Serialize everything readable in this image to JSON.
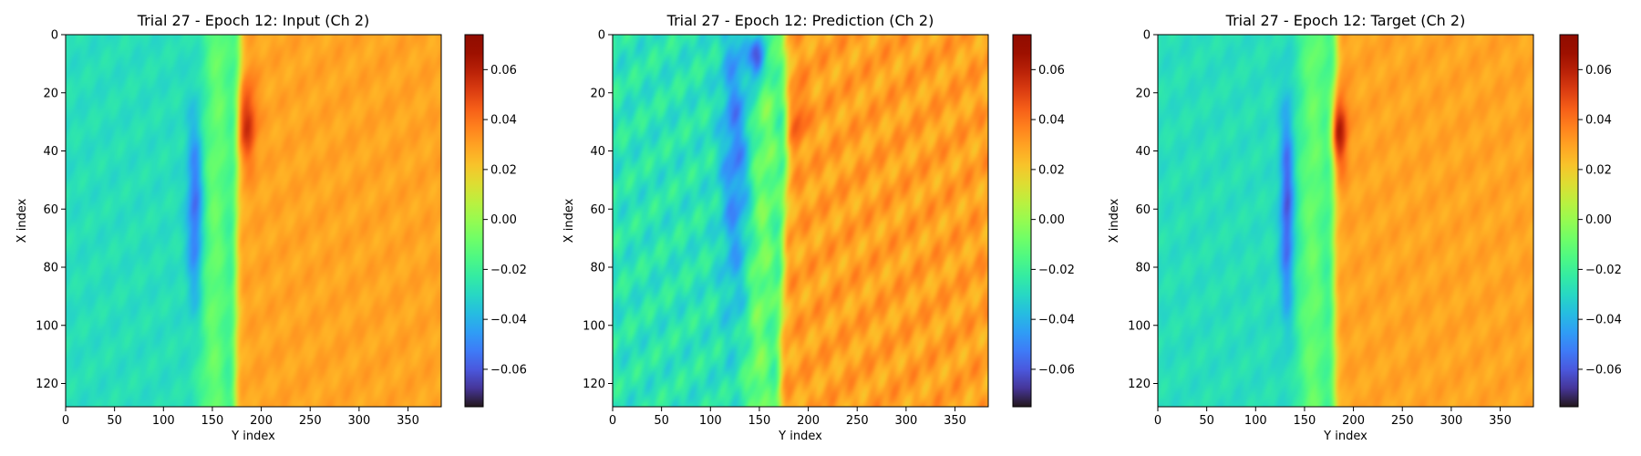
{
  "colormap": "turbo",
  "chart_data": [
    {
      "type": "heatmap",
      "title": "Trial 27 - Epoch 12: Input (Ch 2)",
      "xlabel": "Y index",
      "ylabel": "X index",
      "x_range": [
        0,
        384
      ],
      "y_range": [
        0,
        128
      ],
      "y_inverted": true,
      "xticks": [
        0,
        50,
        100,
        150,
        200,
        250,
        300,
        350
      ],
      "yticks": [
        0,
        20,
        40,
        60,
        80,
        100,
        120
      ],
      "colorbar": {
        "vmin": -0.075,
        "vmax": 0.074,
        "ticks": [
          0.06,
          0.04,
          0.02,
          0.0,
          -0.02,
          -0.04,
          -0.06
        ],
        "tick_labels": [
          "0.06",
          "0.04",
          "0.02",
          "0.00",
          "−0.02",
          "−0.04",
          "−0.06"
        ]
      },
      "field": {
        "left_level": -0.028,
        "right_level": 0.029,
        "front": [
          [
            0,
            178
          ],
          [
            20,
            178
          ],
          [
            40,
            176
          ],
          [
            60,
            175
          ],
          [
            80,
            174
          ],
          [
            100,
            174
          ],
          [
            128,
            173
          ]
        ],
        "vortex": {
          "x_center": 60,
          "x_halfwidth": 32,
          "y_center": 132,
          "y_halfwidth": 8,
          "level": -0.055
        },
        "hotspot": {
          "x_center": 30,
          "x_halfwidth": 14,
          "y_center": 186,
          "y_halfwidth": 9,
          "level": 0.055
        },
        "noise": 0.004
      }
    },
    {
      "type": "heatmap",
      "title": "Trial 27 - Epoch 12: Prediction (Ch 2)",
      "xlabel": "Y index",
      "ylabel": "X index",
      "x_range": [
        0,
        384
      ],
      "y_range": [
        0,
        128
      ],
      "y_inverted": true,
      "xticks": [
        0,
        50,
        100,
        150,
        200,
        250,
        300,
        350
      ],
      "yticks": [
        0,
        20,
        40,
        60,
        80,
        100,
        120
      ],
      "colorbar": {
        "vmin": -0.075,
        "vmax": 0.074,
        "ticks": [
          0.06,
          0.04,
          0.02,
          0.0,
          -0.02,
          -0.04,
          -0.06
        ],
        "tick_labels": [
          "0.06",
          "0.04",
          "0.02",
          "0.00",
          "−0.02",
          "−0.04",
          "−0.06"
        ]
      },
      "field": {
        "left_level": -0.026,
        "right_level": 0.03,
        "front": [
          [
            0,
            175
          ],
          [
            20,
            178
          ],
          [
            40,
            178
          ],
          [
            60,
            176
          ],
          [
            80,
            174
          ],
          [
            100,
            172
          ],
          [
            128,
            170
          ]
        ],
        "vortex": {
          "x_center": 40,
          "x_halfwidth": 55,
          "y_center": 125,
          "y_halfwidth": 14,
          "level": -0.05
        },
        "hotspot": {
          "x_center": 28,
          "x_halfwidth": 10,
          "y_center": 190,
          "y_halfwidth": 8,
          "level": 0.045
        },
        "dark_spot": {
          "x_center": 8,
          "x_halfwidth": 8,
          "y_center": 148,
          "y_halfwidth": 9,
          "level": -0.065
        },
        "noise": 0.009
      }
    },
    {
      "type": "heatmap",
      "title": "Trial 27 - Epoch 12: Target (Ch 2)",
      "xlabel": "Y index",
      "ylabel": "X index",
      "x_range": [
        0,
        384
      ],
      "y_range": [
        0,
        128
      ],
      "y_inverted": true,
      "xticks": [
        0,
        50,
        100,
        150,
        200,
        250,
        300,
        350
      ],
      "yticks": [
        0,
        20,
        40,
        60,
        80,
        100,
        120
      ],
      "colorbar": {
        "vmin": -0.075,
        "vmax": 0.074,
        "ticks": [
          0.06,
          0.04,
          0.02,
          0.0,
          -0.02,
          -0.04,
          -0.06
        ],
        "tick_labels": [
          "0.06",
          "0.04",
          "0.02",
          "0.00",
          "−0.02",
          "−0.04",
          "−0.06"
        ]
      },
      "field": {
        "left_level": -0.028,
        "right_level": 0.029,
        "front": [
          [
            0,
            182
          ],
          [
            20,
            182
          ],
          [
            40,
            181
          ],
          [
            60,
            180
          ],
          [
            80,
            180
          ],
          [
            100,
            180
          ],
          [
            128,
            181
          ]
        ],
        "vortex": {
          "x_center": 60,
          "x_halfwidth": 36,
          "y_center": 132,
          "y_halfwidth": 7,
          "level": -0.06
        },
        "hotspot": {
          "x_center": 33,
          "x_halfwidth": 13,
          "y_center": 186,
          "y_halfwidth": 8,
          "level": 0.06
        },
        "noise": 0.004
      }
    }
  ]
}
